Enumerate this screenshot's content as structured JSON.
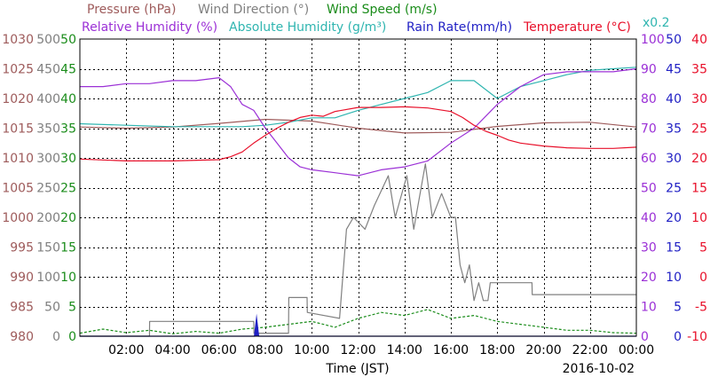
{
  "chart_data": {
    "type": "line",
    "date": "2016-10-02",
    "xlabel": "Time (JST)",
    "x_ticks": [
      "02:00",
      "04:00",
      "06:00",
      "08:00",
      "10:00",
      "12:00",
      "14:00",
      "16:00",
      "18:00",
      "20:00",
      "22:00",
      "00:00"
    ],
    "x_range_hours": [
      0,
      24
    ],
    "grid": true,
    "legend_top": [
      {
        "name": "Pressure (hPa)",
        "color": "#9e5b5b"
      },
      {
        "name": "Wind Direction (°)",
        "color": "#808080"
      },
      {
        "name": "Wind Speed (m/s)",
        "color": "#1a8c1a"
      }
    ],
    "legend_second": [
      {
        "name": "Relative Humidity (%)",
        "color": "#9b30d6"
      },
      {
        "name": "Absolute Humidity (g/m³)",
        "color": "#2fb5b0"
      },
      {
        "name": "Rain Rate(mm/h)",
        "color": "#1f1fc4"
      },
      {
        "name": "Temperature (°C)",
        "color": "#e8102a"
      }
    ],
    "abs_humidity_factor_label": "x0.2",
    "axes": {
      "pressure": {
        "ticks": [
          "1030",
          "1025",
          "1020",
          "1015",
          "1010",
          "1005",
          "1000",
          "995",
          "990",
          "985",
          "980"
        ],
        "range": [
          980,
          1030
        ],
        "color": "#9e5b5b"
      },
      "wind_direction": {
        "ticks": [
          "500",
          "450",
          "400",
          "350",
          "300",
          "250",
          "200",
          "150",
          "100",
          "50",
          "0"
        ],
        "range": [
          0,
          500
        ],
        "color": "#808080"
      },
      "wind_speed": {
        "ticks": [
          "50",
          "45",
          "40",
          "35",
          "30",
          "25",
          "20",
          "15",
          "10",
          "5",
          "0"
        ],
        "range": [
          0,
          50
        ],
        "color": "#1a8c1a"
      },
      "relative_humidity": {
        "ticks": [
          "100",
          "90",
          "80",
          "70",
          "60",
          "50",
          "40",
          "30",
          "20",
          "10",
          "0"
        ],
        "range": [
          0,
          100
        ],
        "color": "#9b30d6"
      },
      "rain_rate": {
        "ticks": [
          "50",
          "45",
          "40",
          "35",
          "30",
          "25",
          "20",
          "15",
          "10",
          "5",
          "0"
        ],
        "range": [
          0,
          50
        ],
        "color": "#1f1fc4"
      },
      "temperature": {
        "ticks": [
          "40",
          "35",
          "30",
          "25",
          "20",
          "15",
          "10",
          "5",
          "0",
          "-5",
          "-10"
        ],
        "range": [
          -10,
          40
        ],
        "color": "#e8102a"
      }
    },
    "series": [
      {
        "name": "Pressure (hPa)",
        "color": "#9e5b5b",
        "x": [
          0,
          2,
          4,
          6,
          8,
          10,
          12,
          14,
          16,
          18,
          20,
          22,
          24
        ],
        "y": [
          1015.2,
          1015.0,
          1015.2,
          1015.8,
          1016.5,
          1016.2,
          1015.0,
          1014.2,
          1014.3,
          1015.3,
          1015.9,
          1016.0,
          1015.2
        ]
      },
      {
        "name": "Wind Direction (°)",
        "color": "#808080",
        "x": [
          0,
          3,
          3.01,
          7.5,
          7.51,
          9,
          9.01,
          9.8,
          9.81,
          11.2,
          11.5,
          11.8,
          12.3,
          12.7,
          13.3,
          13.6,
          14.1,
          14.4,
          14.9,
          15.2,
          15.6,
          16,
          16.2,
          16.4,
          16.6,
          16.8,
          17.0,
          17.2,
          17.4,
          17.6,
          17.7,
          19.5,
          19.51,
          24
        ],
        "y": [
          0,
          0,
          25,
          25,
          5,
          5,
          65,
          65,
          40,
          30,
          180,
          200,
          180,
          220,
          270,
          200,
          270,
          180,
          290,
          200,
          240,
          200,
          200,
          120,
          90,
          120,
          60,
          90,
          60,
          60,
          90,
          90,
          70,
          70
        ]
      },
      {
        "name": "Wind Speed (m/s)",
        "color": "#1a8c1a",
        "x": [
          0,
          1,
          2,
          3,
          4,
          5,
          6,
          7,
          8,
          9,
          10,
          11,
          12,
          13,
          14,
          15,
          16,
          17,
          18,
          19,
          20,
          21,
          22,
          23,
          24
        ],
        "y": [
          0.5,
          1.2,
          0.6,
          1.0,
          0.4,
          0.8,
          0.5,
          1.2,
          1.5,
          2.0,
          2.5,
          1.5,
          3.0,
          4.0,
          3.5,
          4.5,
          3.0,
          3.5,
          2.5,
          2.0,
          1.5,
          1.0,
          1.0,
          0.6,
          0.5
        ]
      },
      {
        "name": "Relative Humidity (%)",
        "color": "#9b30d6",
        "x": [
          0,
          1,
          2,
          3,
          4,
          5,
          6,
          6.5,
          7,
          7.5,
          8,
          8.5,
          9,
          9.5,
          10,
          11,
          12,
          13,
          14,
          15,
          16,
          17,
          18,
          19,
          20,
          21,
          22,
          23,
          24
        ],
        "y": [
          84,
          84,
          85,
          85,
          86,
          86,
          87,
          84,
          78,
          76,
          70,
          65,
          60,
          57,
          56,
          55,
          54,
          56,
          57,
          59,
          65,
          70,
          78,
          84,
          88,
          89,
          89,
          89,
          90
        ]
      },
      {
        "name": "Absolute Humidity (g/m³)",
        "color": "#2fb5b0",
        "x": [
          0,
          2,
          4,
          6,
          7,
          8,
          9,
          10,
          11,
          12,
          13,
          14,
          15,
          16,
          17,
          18,
          19,
          20,
          21,
          22,
          23,
          24
        ],
        "y": [
          71.5,
          71.0,
          70.5,
          70.5,
          70.5,
          71.0,
          72.0,
          73.5,
          73.5,
          76.0,
          78.0,
          80.0,
          82.0,
          86.0,
          86.0,
          80.0,
          84.0,
          86.0,
          88.0,
          89.5,
          90.0,
          90.5
        ]
      },
      {
        "name": "Rain Rate(mm/h)",
        "color": "#1f1fc4",
        "x": [
          0,
          7.55,
          7.62,
          7.7,
          8.0,
          24
        ],
        "y": [
          0,
          0,
          1.9,
          0,
          0,
          0
        ]
      },
      {
        "name": "Temperature (°C)",
        "color": "#e8102a",
        "x": [
          0,
          2,
          4,
          6,
          6.5,
          7,
          7.5,
          8,
          8.5,
          9,
          9.5,
          10,
          10.5,
          11,
          12,
          13,
          14,
          15,
          16,
          16.5,
          17,
          17.5,
          18,
          18.5,
          19,
          20,
          21,
          22,
          23,
          24
        ],
        "y": [
          19.8,
          19.5,
          19.5,
          19.7,
          20.2,
          21.0,
          22.5,
          23.8,
          25.0,
          26.0,
          26.8,
          27.2,
          27.0,
          27.8,
          28.5,
          28.5,
          28.6,
          28.4,
          27.8,
          26.8,
          25.5,
          24.5,
          23.8,
          23.0,
          22.5,
          22.0,
          21.7,
          21.6,
          21.6,
          21.8
        ]
      }
    ]
  }
}
